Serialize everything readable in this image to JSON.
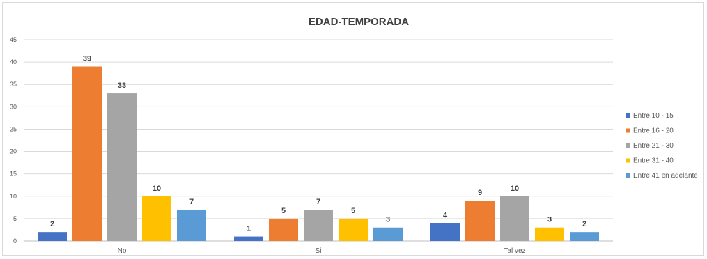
{
  "chart_data": {
    "type": "bar",
    "title": "EDAD-TEMPORADA",
    "xlabel": "",
    "ylabel": "",
    "categories": [
      "No",
      "Si",
      "Tal vez"
    ],
    "ylim": [
      0,
      45
    ],
    "yticks": [
      0,
      5,
      10,
      15,
      20,
      25,
      30,
      35,
      40,
      45
    ],
    "grid": true,
    "legend_position": "right",
    "series": [
      {
        "name": "Entre 10 - 15",
        "color": "#4472C4",
        "values": [
          2,
          1,
          4
        ]
      },
      {
        "name": "Entre 16 - 20",
        "color": "#ED7D31",
        "values": [
          39,
          5,
          9
        ]
      },
      {
        "name": "Entre 21 - 30",
        "color": "#A5A5A5",
        "values": [
          33,
          7,
          10
        ]
      },
      {
        "name": "Entre 31 - 40",
        "color": "#FFC000",
        "values": [
          10,
          5,
          3
        ]
      },
      {
        "name": "Entre 41 en adelante",
        "color": "#5B9BD5",
        "values": [
          7,
          3,
          2
        ]
      }
    ]
  }
}
